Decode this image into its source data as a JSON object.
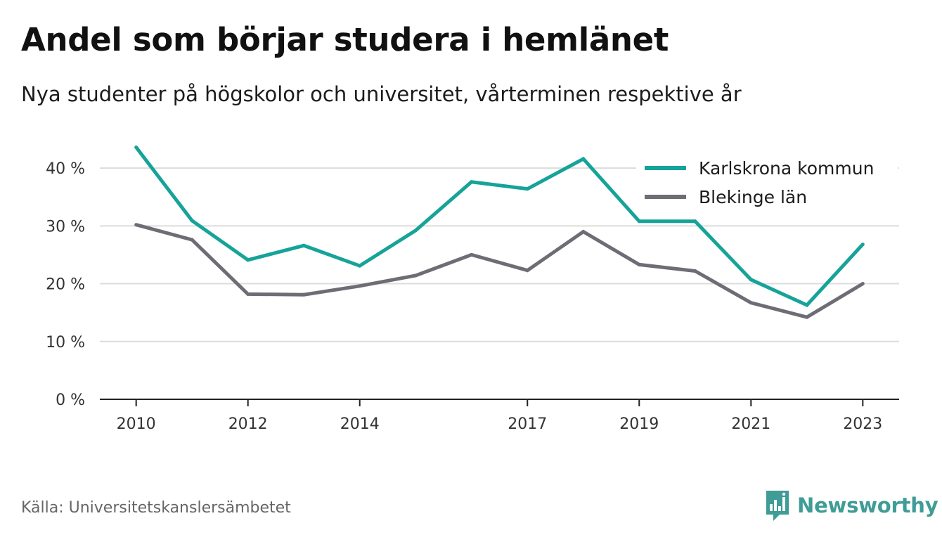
{
  "header": {
    "title": "Andel som börjar studera i hemlänet",
    "subtitle": "Nya studenter på högskolor och universitet, vårterminen respektive år"
  },
  "footer": {
    "source": "Källa: Universitetskanslersämbetet",
    "brand": "Newsworthy",
    "brand_color": "#3f9c96",
    "brand_icon": "bar-chart-speech-bubble-icon"
  },
  "chart_data": {
    "type": "line",
    "title": "Andel som börjar studera i hemlänet",
    "subtitle": "Nya studenter på högskolor och universitet, vårterminen respektive år",
    "xlabel": "",
    "ylabel": "",
    "x": [
      2010,
      2011,
      2012,
      2013,
      2014,
      2015,
      2016,
      2017,
      2018,
      2019,
      2020,
      2021,
      2022,
      2023
    ],
    "xlim": [
      2009.35,
      2023.65
    ],
    "ylim": [
      0,
      45
    ],
    "x_tick_values": [
      2010,
      2012,
      2014,
      2017,
      2019,
      2021,
      2023
    ],
    "x_tick_labels": [
      "2010",
      "2012",
      "2014",
      "2017",
      "2019",
      "2021",
      "2023"
    ],
    "y_tick_values": [
      0,
      10,
      20,
      30,
      40
    ],
    "y_tick_labels": [
      "0 %",
      "10 %",
      "20 %",
      "30 %",
      "40 %"
    ],
    "grid": true,
    "legend_position": "top-right",
    "series": [
      {
        "name": "Karlskrona kommun",
        "color": "#16a399",
        "values": [
          43.6,
          30.9,
          24.1,
          26.6,
          23.1,
          29.2,
          37.6,
          36.4,
          41.6,
          30.8,
          30.8,
          20.7,
          16.3,
          26.8
        ]
      },
      {
        "name": "Blekinge län",
        "color": "#6e6d75",
        "values": [
          30.2,
          27.6,
          18.2,
          18.1,
          19.6,
          21.4,
          25.0,
          22.3,
          29.0,
          23.3,
          22.2,
          16.7,
          14.2,
          20.0
        ]
      }
    ]
  }
}
